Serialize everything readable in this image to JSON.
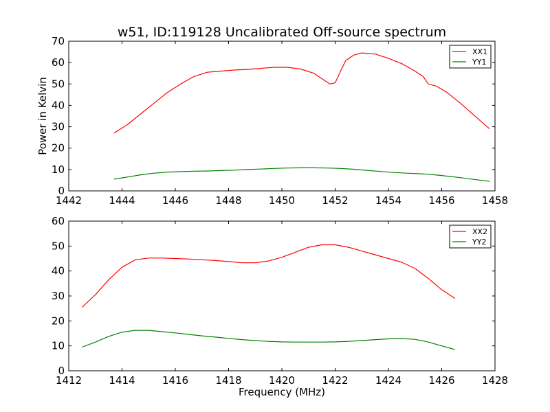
{
  "title": "w51, ID:119128 Uncalibrated Off-source spectrum",
  "chart_data": [
    {
      "type": "line",
      "ylabel": "Power in Kelvin",
      "xlabel": "",
      "xlim": [
        1442,
        1458
      ],
      "ylim": [
        0,
        70
      ],
      "xticks": [
        1442,
        1444,
        1446,
        1448,
        1450,
        1452,
        1454,
        1456,
        1458
      ],
      "yticks": [
        0,
        10,
        20,
        30,
        40,
        50,
        60,
        70
      ],
      "legend_position": "top-right",
      "series": [
        {
          "name": "XX1",
          "color": "#ff0000",
          "x": [
            1443.7,
            1444.2,
            1444.7,
            1445.2,
            1445.7,
            1446.2,
            1446.7,
            1447.2,
            1447.7,
            1448.2,
            1448.7,
            1449.2,
            1449.7,
            1450.2,
            1450.7,
            1451.2,
            1451.5,
            1451.8,
            1452.0,
            1452.2,
            1452.4,
            1452.7,
            1453.0,
            1453.5,
            1454.0,
            1454.5,
            1455.0,
            1455.3,
            1455.5,
            1455.8,
            1456.2,
            1456.7,
            1457.2,
            1457.8
          ],
          "y": [
            27,
            31,
            36,
            41,
            46,
            50,
            53.5,
            55.5,
            56,
            56.5,
            56.8,
            57.3,
            57.8,
            57.8,
            57,
            55,
            52.5,
            50,
            50.5,
            56,
            61,
            63.5,
            64.5,
            64,
            62,
            59.5,
            56,
            53.5,
            50,
            49,
            46,
            41,
            35.5,
            29
          ]
        },
        {
          "name": "YY1",
          "color": "#008000",
          "x": [
            1443.7,
            1444.2,
            1444.7,
            1445.2,
            1445.7,
            1446.2,
            1446.7,
            1447.2,
            1447.7,
            1448.2,
            1448.7,
            1449.2,
            1449.7,
            1450.2,
            1450.7,
            1451.2,
            1451.7,
            1452.2,
            1452.7,
            1453.2,
            1453.7,
            1454.2,
            1454.7,
            1455.2,
            1455.5,
            1456.0,
            1456.5,
            1457.0,
            1457.5,
            1457.8
          ],
          "y": [
            5.5,
            6.5,
            7.5,
            8.3,
            8.8,
            9.0,
            9.2,
            9.3,
            9.5,
            9.7,
            10.0,
            10.2,
            10.5,
            10.7,
            10.8,
            10.8,
            10.7,
            10.5,
            10.1,
            9.6,
            9.1,
            8.6,
            8.3,
            8.0,
            7.8,
            7.2,
            6.5,
            5.7,
            4.9,
            4.5
          ]
        }
      ]
    },
    {
      "type": "line",
      "ylabel": "",
      "xlabel": "Frequency (MHz)",
      "xlim": [
        1412,
        1428
      ],
      "ylim": [
        0,
        60
      ],
      "xticks": [
        1412,
        1414,
        1416,
        1418,
        1420,
        1422,
        1424,
        1426,
        1428
      ],
      "yticks": [
        0,
        10,
        20,
        30,
        40,
        50,
        60
      ],
      "legend_position": "top-right",
      "series": [
        {
          "name": "XX2",
          "color": "#ff0000",
          "x": [
            1412.5,
            1413.0,
            1413.5,
            1414.0,
            1414.5,
            1415.0,
            1415.5,
            1416.0,
            1416.5,
            1417.0,
            1417.5,
            1418.0,
            1418.5,
            1419.0,
            1419.5,
            1420.0,
            1420.5,
            1421.0,
            1421.5,
            1422.0,
            1422.5,
            1423.0,
            1423.5,
            1424.0,
            1424.5,
            1425.0,
            1425.5,
            1426.0,
            1426.5
          ],
          "y": [
            25.5,
            30.5,
            36.5,
            41.5,
            44.5,
            45.2,
            45.2,
            45,
            44.8,
            44.5,
            44.2,
            43.8,
            43.3,
            43.3,
            44,
            45.5,
            47.5,
            49.5,
            50.5,
            50.5,
            49.5,
            48,
            46.5,
            45,
            43.5,
            41,
            37,
            32.5,
            29
          ]
        },
        {
          "name": "YY2",
          "color": "#008000",
          "x": [
            1412.5,
            1413.0,
            1413.5,
            1414.0,
            1414.5,
            1415.0,
            1415.5,
            1416.0,
            1416.5,
            1417.0,
            1417.5,
            1418.0,
            1418.5,
            1419.0,
            1419.5,
            1420.0,
            1420.5,
            1421.0,
            1421.5,
            1422.0,
            1422.5,
            1423.0,
            1423.5,
            1424.0,
            1424.5,
            1425.0,
            1425.5,
            1426.0,
            1426.5
          ],
          "y": [
            9.5,
            11.5,
            13.8,
            15.5,
            16.2,
            16.2,
            15.7,
            15.2,
            14.6,
            14.0,
            13.5,
            13.0,
            12.5,
            12.1,
            11.8,
            11.6,
            11.5,
            11.5,
            11.5,
            11.6,
            11.8,
            12.1,
            12.5,
            12.8,
            12.9,
            12.6,
            11.5,
            10.0,
            8.5
          ]
        }
      ]
    }
  ]
}
